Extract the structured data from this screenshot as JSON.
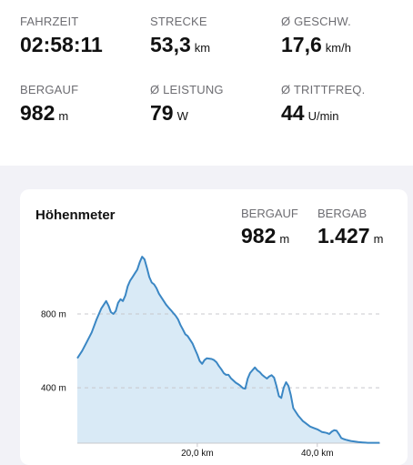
{
  "summary": [
    {
      "label": "FAHRZEIT",
      "value": "02:58:11",
      "unit": ""
    },
    {
      "label": "STRECKE",
      "value": "53,3",
      "unit": "km"
    },
    {
      "label": "Ø GESCHW.",
      "value": "17,6",
      "unit": "km/h"
    },
    {
      "label": "BERGAUF",
      "value": "982",
      "unit": "m"
    },
    {
      "label": "Ø LEISTUNG",
      "value": "79",
      "unit": "W"
    },
    {
      "label": "Ø TRITTFREQ.",
      "value": "44",
      "unit": "U/min"
    }
  ],
  "card": {
    "title": "Höhenmeter",
    "ascent": {
      "label": "BERGAUF",
      "value": "982",
      "unit": "m"
    },
    "descent": {
      "label": "BERGAB",
      "value": "1.427",
      "unit": "m"
    }
  },
  "colors": {
    "line": "#3b87c4",
    "fill": "#d9eaf6",
    "grid": "#c8c8cc"
  },
  "chart_data": {
    "type": "area",
    "title": "Höhenmeter",
    "xlabel": "",
    "ylabel": "",
    "x_unit": "km",
    "y_unit": "m",
    "x_ticks": [
      {
        "value": 20,
        "label": "20,0 km"
      },
      {
        "value": 40,
        "label": "40,0 km"
      }
    ],
    "y_ticks": [
      {
        "value": 800,
        "label": "800 m"
      },
      {
        "value": 400,
        "label": "400 m"
      }
    ],
    "xlim": [
      0,
      50.5
    ],
    "ylim": [
      100,
      1140
    ],
    "grid": true,
    "x": [
      0,
      0.8,
      1.6,
      2.4,
      3.2,
      4.0,
      4.8,
      5.2,
      5.6,
      6.0,
      6.4,
      6.8,
      7.2,
      7.6,
      8.0,
      8.4,
      8.8,
      9.2,
      9.6,
      10.0,
      10.4,
      10.8,
      11.2,
      11.6,
      12.0,
      12.4,
      12.8,
      13.2,
      13.6,
      14.0,
      14.4,
      14.8,
      15.2,
      15.6,
      16.0,
      16.4,
      16.8,
      17.2,
      17.6,
      18.0,
      18.4,
      18.8,
      19.2,
      19.6,
      20.0,
      20.4,
      20.8,
      21.2,
      21.6,
      22.0,
      22.4,
      22.8,
      23.2,
      23.6,
      24.0,
      24.4,
      24.8,
      25.2,
      25.6,
      26.0,
      26.4,
      26.8,
      27.2,
      27.6,
      28.0,
      28.4,
      28.8,
      29.2,
      29.6,
      30.0,
      30.4,
      30.8,
      31.2,
      31.6,
      32.0,
      32.4,
      32.8,
      33.2,
      33.6,
      34.0,
      34.4,
      34.8,
      35.2,
      35.6,
      36.0,
      36.4,
      36.8,
      37.2,
      37.6,
      38.0,
      38.4,
      38.8,
      39.2,
      39.6,
      40.0,
      40.4,
      40.8,
      41.2,
      41.6,
      42.0,
      42.4,
      42.8,
      43.2,
      43.6,
      44.0,
      44.4,
      44.8,
      45.2,
      45.6,
      46.0,
      46.4,
      46.8,
      47.2,
      47.6,
      48.0,
      48.4,
      48.8,
      49.2,
      49.6,
      50.0,
      50.4
    ],
    "series": [
      {
        "values": [
          560,
          600,
          650,
          700,
          770,
          830,
          870,
          845,
          810,
          800,
          815,
          860,
          880,
          870,
          900,
          950,
          980,
          1000,
          1020,
          1040,
          1080,
          1110,
          1095,
          1050,
          1000,
          970,
          960,
          940,
          910,
          890,
          870,
          850,
          835,
          820,
          805,
          790,
          770,
          740,
          715,
          690,
          680,
          660,
          640,
          610,
          580,
          545,
          530,
          550,
          560,
          558,
          556,
          550,
          538,
          518,
          500,
          480,
          470,
          470,
          452,
          440,
          428,
          420,
          410,
          398,
          395,
          450,
          480,
          495,
          510,
          495,
          485,
          470,
          460,
          450,
          462,
          468,
          455,
          410,
          355,
          345,
          400,
          430,
          410,
          360,
          290,
          270,
          250,
          235,
          220,
          210,
          200,
          190,
          185,
          180,
          175,
          168,
          160,
          158,
          155,
          150,
          162,
          170,
          168,
          150,
          128,
          122,
          118,
          115,
          112,
          110,
          108,
          106,
          105,
          104,
          103,
          102,
          102,
          102,
          102,
          102,
          102
        ]
      }
    ]
  }
}
